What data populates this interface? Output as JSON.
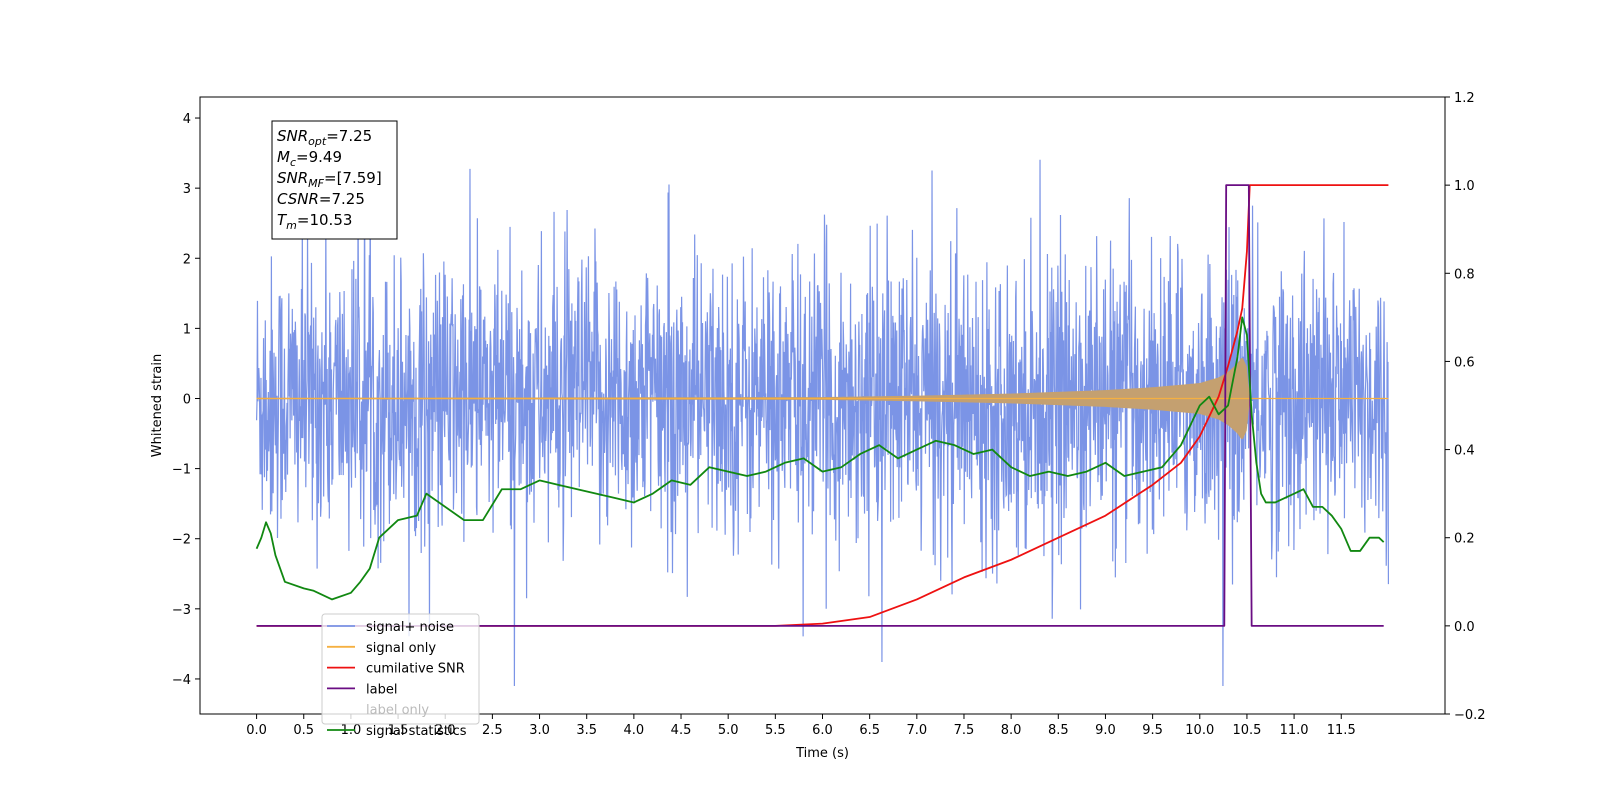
{
  "chart_data": {
    "type": "line",
    "xlabel": "Time (s)",
    "ylabel": "Whitened strain",
    "xlim": [
      -0.6,
      12.6
    ],
    "ylim_left": [
      -4.5,
      4.3
    ],
    "ylim_right": [
      -0.2,
      1.2
    ],
    "x_ticks": [
      0.0,
      0.5,
      1.0,
      1.5,
      2.0,
      2.5,
      3.0,
      3.5,
      4.0,
      4.5,
      5.0,
      5.5,
      6.0,
      6.5,
      7.0,
      7.5,
      8.0,
      8.5,
      9.0,
      9.5,
      10.0,
      10.5,
      11.0,
      11.5
    ],
    "x_tick_labels": [
      "0.0",
      "0.5",
      "1.0",
      "1.5",
      "2.0",
      "2.5",
      "3.0",
      "3.5",
      "4.0",
      "4.5",
      "5.0",
      "5.5",
      "6.0",
      "6.5",
      "7.0",
      "7.5",
      "8.0",
      "8.5",
      "9.0",
      "9.5",
      "10.0",
      "10.5",
      "11.0",
      "11.5"
    ],
    "y_ticks_left": [
      -4,
      -3,
      -2,
      -1,
      0,
      1,
      2,
      3,
      4
    ],
    "y_tick_labels_left": [
      "−4",
      "−3",
      "−2",
      "−1",
      "0",
      "1",
      "2",
      "3",
      "4"
    ],
    "y_ticks_right": [
      -0.2,
      0.0,
      0.2,
      0.4,
      0.6,
      0.8,
      1.0,
      1.2
    ],
    "y_tick_labels_right": [
      "−0.2",
      "0.0",
      "0.2",
      "0.4",
      "0.6",
      "0.8",
      "1.0",
      "1.2"
    ],
    "grid": false,
    "legend_position": "lower-left",
    "colors": {
      "signal_noise": "#7b94e6",
      "signal_only": "#f5b041",
      "signal_fill": "#c4a070",
      "cumulative_snr": "#ee1111",
      "label": "#6a0d83",
      "signal_statistics": "#118811"
    },
    "series": [
      {
        "name": "signal+ noise",
        "axis": "left",
        "description_values": "dense noise spanning approximately -2.5 to 2.5 with spikes up to ~3.9 and down to ~-4.1, over 0.0 to 12.0 s",
        "x_range": [
          0.0,
          12.0
        ]
      },
      {
        "name": "signal only",
        "axis": "left",
        "envelope": {
          "x": [
            0.0,
            6.0,
            7.0,
            8.0,
            9.0,
            9.5,
            10.0,
            10.2,
            10.3,
            10.4,
            10.45,
            10.5,
            10.53,
            10.6,
            12.0
          ],
          "amplitude": [
            0.01,
            0.02,
            0.04,
            0.07,
            0.12,
            0.16,
            0.22,
            0.3,
            0.38,
            0.5,
            0.6,
            0.45,
            0.0,
            0.0,
            0.0
          ]
        }
      },
      {
        "name": "cumilative SNR",
        "axis": "right",
        "x": [
          0.0,
          5.5,
          6.0,
          6.5,
          7.0,
          7.5,
          8.0,
          8.5,
          9.0,
          9.5,
          9.8,
          10.0,
          10.2,
          10.3,
          10.4,
          10.45,
          10.5,
          10.53,
          11.0,
          12.0
        ],
        "values": [
          0.0,
          0.0,
          0.005,
          0.02,
          0.06,
          0.11,
          0.15,
          0.2,
          0.25,
          0.32,
          0.37,
          0.43,
          0.52,
          0.59,
          0.67,
          0.72,
          0.85,
          1.0,
          1.0,
          1.0
        ]
      },
      {
        "name": "label",
        "axis": "right",
        "x": [
          0.0,
          10.26,
          10.28,
          10.52,
          10.55,
          11.95
        ],
        "values": [
          0.0,
          0.0,
          1.0,
          1.0,
          0.0,
          0.0
        ]
      },
      {
        "name": "label only",
        "axis": "right",
        "values": []
      },
      {
        "name": "signal statistics",
        "axis": "right",
        "x": [
          0.0,
          0.05,
          0.1,
          0.15,
          0.2,
          0.3,
          0.5,
          0.6,
          0.8,
          1.0,
          1.1,
          1.2,
          1.3,
          1.5,
          1.7,
          1.8,
          2.0,
          2.2,
          2.4,
          2.6,
          2.8,
          3.0,
          3.2,
          3.4,
          3.6,
          3.8,
          4.0,
          4.2,
          4.4,
          4.6,
          4.8,
          5.0,
          5.2,
          5.4,
          5.6,
          5.8,
          6.0,
          6.2,
          6.4,
          6.6,
          6.8,
          7.0,
          7.2,
          7.4,
          7.6,
          7.8,
          8.0,
          8.2,
          8.4,
          8.6,
          8.8,
          9.0,
          9.2,
          9.4,
          9.6,
          9.8,
          10.0,
          10.1,
          10.2,
          10.3,
          10.4,
          10.45,
          10.5,
          10.55,
          10.6,
          10.65,
          10.7,
          10.8,
          10.9,
          11.0,
          11.1,
          11.2,
          11.3,
          11.4,
          11.5,
          11.6,
          11.7,
          11.8,
          11.9,
          11.95
        ],
        "values": [
          0.175,
          0.2,
          0.235,
          0.21,
          0.16,
          0.1,
          0.085,
          0.08,
          0.06,
          0.075,
          0.1,
          0.13,
          0.2,
          0.24,
          0.25,
          0.3,
          0.27,
          0.24,
          0.24,
          0.31,
          0.31,
          0.33,
          0.32,
          0.31,
          0.3,
          0.29,
          0.28,
          0.3,
          0.33,
          0.32,
          0.36,
          0.35,
          0.34,
          0.35,
          0.37,
          0.38,
          0.35,
          0.36,
          0.39,
          0.41,
          0.38,
          0.4,
          0.42,
          0.41,
          0.39,
          0.4,
          0.36,
          0.34,
          0.35,
          0.34,
          0.35,
          0.37,
          0.34,
          0.35,
          0.36,
          0.41,
          0.5,
          0.52,
          0.48,
          0.5,
          0.61,
          0.7,
          0.66,
          0.48,
          0.37,
          0.3,
          0.28,
          0.28,
          0.29,
          0.3,
          0.31,
          0.27,
          0.27,
          0.25,
          0.22,
          0.17,
          0.17,
          0.2,
          0.2,
          0.19
        ]
      }
    ],
    "info_box": [
      {
        "symbol": "SNR",
        "sub": "opt",
        "value": "=7.25"
      },
      {
        "symbol": "M",
        "sub": "c",
        "value": "=9.49"
      },
      {
        "symbol": "SNR",
        "sub": "MF",
        "value": "=[7.59]"
      },
      {
        "symbol": "CSNR",
        "sub": "",
        "value": "=7.25"
      },
      {
        "symbol": "T",
        "sub": "m",
        "value": "=10.53"
      }
    ],
    "legend": [
      {
        "label": "signal+ noise",
        "color": "#7b94e6"
      },
      {
        "label": "signal only",
        "color": "#f5b041"
      },
      {
        "label": "cumilative SNR",
        "color": "#ee1111"
      },
      {
        "label": "label",
        "color": "#6a0d83"
      },
      {
        "label": "label only",
        "color": null
      },
      {
        "label": "signal statistics",
        "color": "#118811"
      }
    ]
  }
}
